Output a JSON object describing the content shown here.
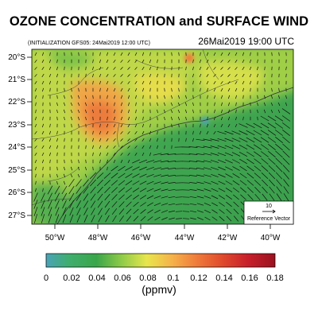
{
  "header": {
    "title": "OZONE CONCENTRATION and SURFACE WIND",
    "init_label": "(INITIALIZATION GFS05: 24Mai2019 12:00 UTC)",
    "valid_time": "26Mai2019 19:00 UTC"
  },
  "map": {
    "lat_labels": [
      "20°S",
      "21°S",
      "22°S",
      "23°S",
      "24°S",
      "25°S",
      "26°S",
      "27°S"
    ],
    "lon_labels": [
      "50°W",
      "48°W",
      "46°W",
      "44°W",
      "42°W",
      "40°W"
    ],
    "variable": "Ozone concentration",
    "wind_field": "surface wind vectors"
  },
  "reference_vector": {
    "value": "10",
    "label": "Reference Vector"
  },
  "colorbar": {
    "tick_labels": [
      "0",
      "0.02",
      "0.04",
      "0.06",
      "0.08",
      "0.1",
      "0.12",
      "0.14",
      "0.16",
      "0.18"
    ],
    "units": "(ppmv)",
    "colors": [
      "#4aa3b8",
      "#3fae6e",
      "#3aa64a",
      "#6dbf45",
      "#a8d24a",
      "#e8e64c",
      "#f5b24a",
      "#ef7a3a",
      "#e04a2c",
      "#c81f2a",
      "#a01421"
    ]
  }
}
